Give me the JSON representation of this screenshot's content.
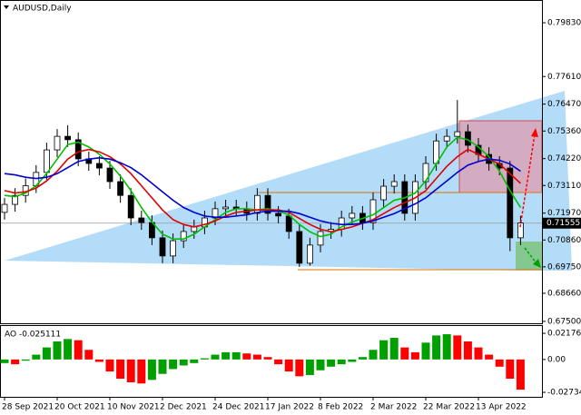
{
  "chart_data": [
    {
      "type": "candlestick",
      "title": "AUDUSD,Daily",
      "categories": [
        "28 Sep 2021",
        null,
        null,
        null,
        null,
        "20 Oct 2021",
        null,
        null,
        null,
        null,
        "10 Nov 2021",
        null,
        null,
        null,
        null,
        "2 Dec 2021",
        null,
        null,
        null,
        null,
        "24 Dec 2021",
        null,
        null,
        null,
        null,
        "17 Jan 2022",
        null,
        null,
        null,
        null,
        "8 Feb 2022",
        null,
        null,
        null,
        null,
        "2 Mar 2022",
        null,
        null,
        null,
        null,
        "22 Mar 2022",
        null,
        null,
        null,
        null,
        "13 Apr 2022",
        null,
        null,
        null,
        null
      ],
      "candles": [
        [
          0.72,
          0.726,
          0.717,
          0.7233
        ],
        [
          0.7233,
          0.73,
          0.7203,
          0.727
        ],
        [
          0.727,
          0.734,
          0.724,
          0.731
        ],
        [
          0.731,
          0.7395,
          0.728,
          0.7365
        ],
        [
          0.7365,
          0.7488,
          0.7335,
          0.7458
        ],
        [
          0.7458,
          0.7544,
          0.7428,
          0.7514
        ],
        [
          0.7514,
          0.756,
          0.747,
          0.75
        ],
        [
          0.75,
          0.753,
          0.7391,
          0.7421
        ],
        [
          0.7421,
          0.7451,
          0.7372,
          0.7402
        ],
        [
          0.7402,
          0.7432,
          0.7353,
          0.7383
        ],
        [
          0.7383,
          0.7413,
          0.7297,
          0.7327
        ],
        [
          0.7327,
          0.7357,
          0.724,
          0.727
        ],
        [
          0.727,
          0.73,
          0.7147,
          0.7177
        ],
        [
          0.7177,
          0.7207,
          0.7128,
          0.7158
        ],
        [
          0.7158,
          0.7188,
          0.7065,
          0.7095
        ],
        [
          0.7095,
          0.7125,
          0.699,
          0.702
        ],
        [
          0.702,
          0.7113,
          0.699,
          0.7083
        ],
        [
          0.7083,
          0.7151,
          0.7053,
          0.7121
        ],
        [
          0.7121,
          0.717,
          0.7091,
          0.714
        ],
        [
          0.714,
          0.7207,
          0.711,
          0.7177
        ],
        [
          0.7177,
          0.7245,
          0.7147,
          0.7215
        ],
        [
          0.7215,
          0.7252,
          0.7185,
          0.7222
        ],
        [
          0.7222,
          0.7252,
          0.7185,
          0.7215
        ],
        [
          0.7215,
          0.7245,
          0.7166,
          0.7196
        ],
        [
          0.7196,
          0.73,
          0.7166,
          0.727
        ],
        [
          0.727,
          0.73,
          0.7166,
          0.7196
        ],
        [
          0.7196,
          0.7226,
          0.7155,
          0.7185
        ],
        [
          0.7185,
          0.7215,
          0.7091,
          0.7121
        ],
        [
          0.7121,
          0.7151,
          0.6975,
          0.699
        ],
        [
          0.699,
          0.7095,
          0.698,
          0.7065
        ],
        [
          0.7065,
          0.7151,
          0.7035,
          0.7121
        ],
        [
          0.7121,
          0.716,
          0.7091,
          0.713
        ],
        [
          0.713,
          0.7207,
          0.71,
          0.7177
        ],
        [
          0.7177,
          0.7226,
          0.7147,
          0.7196
        ],
        [
          0.7196,
          0.7226,
          0.7128,
          0.7158
        ],
        [
          0.7158,
          0.7282,
          0.7128,
          0.7252
        ],
        [
          0.7252,
          0.7338,
          0.7222,
          0.7308
        ],
        [
          0.7308,
          0.7357,
          0.7278,
          0.7327
        ],
        [
          0.7327,
          0.7357,
          0.7166,
          0.7196
        ],
        [
          0.7196,
          0.7357,
          0.7166,
          0.7327
        ],
        [
          0.7327,
          0.7432,
          0.7297,
          0.7402
        ],
        [
          0.7402,
          0.7525,
          0.7372,
          0.7495
        ],
        [
          0.7495,
          0.7544,
          0.7465,
          0.7514
        ],
        [
          0.7514,
          0.7664,
          0.7484,
          0.7533
        ],
        [
          0.7533,
          0.7563,
          0.7447,
          0.7477
        ],
        [
          0.7477,
          0.7507,
          0.7409,
          0.7439
        ],
        [
          0.7439,
          0.7469,
          0.7372,
          0.7402
        ],
        [
          0.7402,
          0.7432,
          0.7353,
          0.7383
        ],
        [
          0.7383,
          0.7413,
          0.704,
          0.7095
        ],
        [
          0.7095,
          0.7186,
          0.7065,
          0.7156
        ]
      ],
      "series": [
        {
          "color": "#00c000",
          "values": [
            0.727,
            0.7265,
            0.728,
            0.731,
            0.736,
            0.742,
            0.748,
            0.749,
            0.747,
            0.744,
            0.74,
            0.735,
            0.729,
            0.722,
            0.716,
            0.711,
            0.709,
            0.709,
            0.711,
            0.714,
            0.717,
            0.72,
            0.7215,
            0.7215,
            0.721,
            0.7215,
            0.7205,
            0.719,
            0.715,
            0.712,
            0.71,
            0.711,
            0.714,
            0.716,
            0.7175,
            0.719,
            0.722,
            0.725,
            0.726,
            0.728,
            0.733,
            0.74,
            0.747,
            0.751,
            0.75,
            0.747,
            0.743,
            0.737,
            0.729,
            0.722
          ]
        },
        {
          "color": "#e00000",
          "values": [
            0.729,
            0.728,
            0.7285,
            0.73,
            0.733,
            0.737,
            0.742,
            0.745,
            0.746,
            0.745,
            0.743,
            0.74,
            0.736,
            0.731,
            0.726,
            0.721,
            0.717,
            0.715,
            0.714,
            0.715,
            0.7165,
            0.7185,
            0.72,
            0.7205,
            0.721,
            0.721,
            0.721,
            0.72,
            0.7175,
            0.715,
            0.713,
            0.712,
            0.713,
            0.714,
            0.7155,
            0.717,
            0.7195,
            0.722,
            0.724,
            0.726,
            0.729,
            0.734,
            0.739,
            0.743,
            0.746,
            0.744,
            0.742,
            0.74,
            0.736,
            0.732
          ]
        },
        {
          "color": "#0000d0",
          "values": [
            0.736,
            0.7355,
            0.7345,
            0.734,
            0.7345,
            0.736,
            0.7385,
            0.741,
            0.742,
            0.7425,
            0.742,
            0.7405,
            0.7385,
            0.7355,
            0.732,
            0.7285,
            0.725,
            0.722,
            0.72,
            0.7185,
            0.718,
            0.718,
            0.7185,
            0.719,
            0.72,
            0.7205,
            0.7205,
            0.7205,
            0.7195,
            0.718,
            0.7165,
            0.7155,
            0.715,
            0.715,
            0.7155,
            0.7165,
            0.718,
            0.7195,
            0.7215,
            0.7235,
            0.726,
            0.7295,
            0.733,
            0.7365,
            0.7395,
            0.741,
            0.742,
            0.7415,
            0.74,
            0.737
          ]
        }
      ],
      "ylim": [
        0.6742,
        0.8077
      ],
      "yticks": [
        {
          "value": 0.7983,
          "label": "0.79830"
        },
        {
          "value": 0.7761,
          "label": "0.77610"
        },
        {
          "value": 0.7647,
          "label": "0.76470"
        },
        {
          "value": 0.7536,
          "label": "0.75360"
        },
        {
          "value": 0.7422,
          "label": "0.74220"
        },
        {
          "value": 0.7311,
          "label": "0.73110"
        },
        {
          "value": 0.7197,
          "label": "0.71970"
        },
        {
          "value": 0.7086,
          "label": "0.70860"
        },
        {
          "value": 0.6975,
          "label": "0.69750"
        },
        {
          "value": 0.6866,
          "label": "0.68660"
        },
        {
          "value": 0.675,
          "label": "0.67500"
        }
      ],
      "last_price": {
        "value": 0.71555,
        "label": "0.71555"
      }
    },
    {
      "type": "bar",
      "title": "AO -0.025111",
      "up_color": "#00a000",
      "down_color": "#ff0000",
      "values": [
        -0.003,
        -0.004,
        -0.001,
        0.004,
        0.01,
        0.015,
        0.017,
        0.016,
        0.008,
        -0.002,
        -0.01,
        -0.016,
        -0.019,
        -0.02,
        -0.017,
        -0.012,
        -0.008,
        -0.005,
        -0.003,
        0.001,
        0.004,
        0.006,
        0.006,
        0.005,
        0.004,
        0.002,
        -0.004,
        -0.01,
        -0.014,
        -0.013,
        -0.009,
        -0.006,
        -0.004,
        -0.002,
        0.002,
        0.008,
        0.016,
        0.018,
        0.01,
        0.006,
        0.014,
        0.02,
        0.021,
        0.02,
        0.015,
        0.01,
        0.004,
        -0.006,
        -0.016,
        -0.025111
      ],
      "ylim": [
        -0.0311,
        0.0286
      ],
      "yticks": [
        0.021763,
        {
          "value": 0,
          "label": "0.00"
        },
        -0.027343
      ]
    }
  ]
}
